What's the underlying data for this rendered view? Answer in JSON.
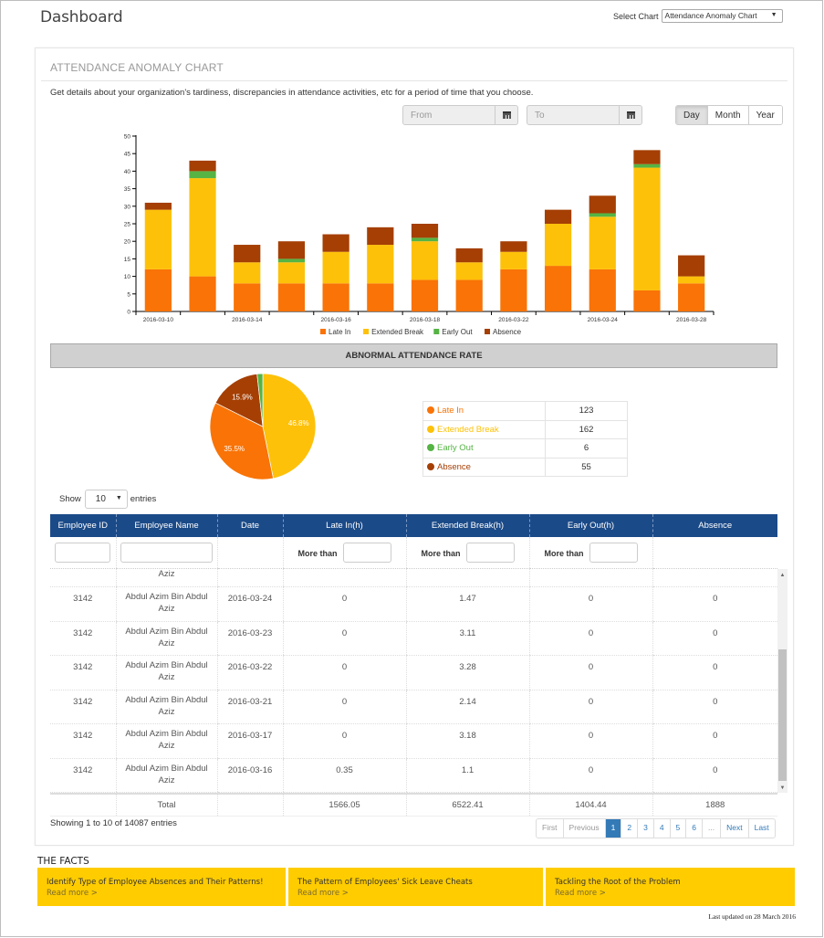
{
  "header": {
    "title": "Dashboard",
    "select_chart_label": "Select Chart",
    "select_chart_value": "Attendance Anomaly Chart"
  },
  "panel": {
    "title": "ATTENDANCE ANOMALY CHART",
    "description": "Get details about your organization's tardiness, discrepancies in attendance activities, etc for a period of time that you choose.",
    "from_placeholder": "From",
    "to_placeholder": "To",
    "period_buttons": [
      "Day",
      "Month",
      "Year"
    ],
    "active_period": "Day"
  },
  "colors": {
    "late_in": "#f97306",
    "extended_break": "#fec10a",
    "early_out": "#55b444",
    "absence": "#a53f04",
    "table_header": "#1b4a88",
    "facts_bg": "#ffcc00",
    "pager_active": "#337ab7"
  },
  "chart_data": [
    {
      "type": "bar",
      "stacked": true,
      "title": "",
      "xlabel": "",
      "ylabel": "",
      "ylim": [
        0,
        50
      ],
      "yticks": [
        0,
        5,
        10,
        15,
        20,
        25,
        30,
        35,
        40,
        45,
        50
      ],
      "categories": [
        "2016-03-10",
        "",
        "2016-03-14",
        "",
        "2016-03-16",
        "",
        "2016-03-18",
        "",
        "2016-03-22",
        "",
        "2016-03-24",
        "",
        "2016-03-28"
      ],
      "series": [
        {
          "name": "Late In",
          "values": [
            12,
            10,
            8,
            8,
            8,
            8,
            9,
            9,
            12,
            13,
            12,
            6,
            8
          ]
        },
        {
          "name": "Extended Break",
          "values": [
            17,
            28,
            6,
            6,
            9,
            11,
            11,
            5,
            5,
            12,
            15,
            35,
            2
          ]
        },
        {
          "name": "Early Out",
          "values": [
            0,
            2,
            0,
            1,
            0,
            0,
            1,
            0,
            0,
            0,
            1,
            1,
            0
          ]
        },
        {
          "name": "Absence",
          "values": [
            2,
            3,
            5,
            5,
            5,
            5,
            4,
            4,
            3,
            4,
            5,
            4,
            6
          ]
        }
      ],
      "legend": "bottom-center",
      "grid": false
    },
    {
      "type": "pie",
      "title": "ABNORMAL ATTENDANCE RATE",
      "labels": [
        "Extended Break",
        "Late In",
        "Absence",
        "Early Out"
      ],
      "values": [
        162,
        123,
        55,
        6
      ],
      "data_labels": [
        "46.8%",
        "35.5%",
        "15.9%",
        ""
      ]
    }
  ],
  "rate_section": {
    "title": "ABNORMAL ATTENDANCE RATE",
    "legend": [
      {
        "label": "Late In",
        "value": "123",
        "color": "#f97306"
      },
      {
        "label": "Extended Break",
        "value": "162",
        "color": "#fec10a"
      },
      {
        "label": "Early Out",
        "value": "6",
        "color": "#55b444"
      },
      {
        "label": "Absence",
        "value": "55",
        "color": "#a53f04"
      }
    ]
  },
  "table": {
    "show_label": "Show",
    "entries_label": "entries",
    "page_length": "10",
    "columns": [
      "Employee ID",
      "Employee Name",
      "Date",
      "Late In(h)",
      "Extended Break(h)",
      "Early Out(h)",
      "Absence"
    ],
    "more_than_label": "More than",
    "partial_row": {
      "name_tail": "Aziz"
    },
    "rows": [
      {
        "id": "3142",
        "name": "Abdul Azim Bin Abdul Aziz",
        "date": "2016-03-24",
        "late_in": "0",
        "extended_break": "1.47",
        "early_out": "0",
        "absence": "0"
      },
      {
        "id": "3142",
        "name": "Abdul Azim Bin Abdul Aziz",
        "date": "2016-03-23",
        "late_in": "0",
        "extended_break": "3.11",
        "early_out": "0",
        "absence": "0"
      },
      {
        "id": "3142",
        "name": "Abdul Azim Bin Abdul Aziz",
        "date": "2016-03-22",
        "late_in": "0",
        "extended_break": "3.28",
        "early_out": "0",
        "absence": "0"
      },
      {
        "id": "3142",
        "name": "Abdul Azim Bin Abdul Aziz",
        "date": "2016-03-21",
        "late_in": "0",
        "extended_break": "2.14",
        "early_out": "0",
        "absence": "0"
      },
      {
        "id": "3142",
        "name": "Abdul Azim Bin Abdul Aziz",
        "date": "2016-03-17",
        "late_in": "0",
        "extended_break": "3.18",
        "early_out": "0",
        "absence": "0"
      },
      {
        "id": "3142",
        "name": "Abdul Azim Bin Abdul Aziz",
        "date": "2016-03-16",
        "late_in": "0.35",
        "extended_break": "1.1",
        "early_out": "0",
        "absence": "0"
      }
    ],
    "totals": {
      "label": "Total",
      "late_in": "1566.05",
      "extended_break": "6522.41",
      "early_out": "1404.44",
      "absence": "1888"
    },
    "info": "Showing 1 to 10 of 14087 entries",
    "pagination": [
      "First",
      "Previous",
      "1",
      "2",
      "3",
      "4",
      "5",
      "6",
      "...",
      "Next",
      "Last"
    ],
    "active_page": "1"
  },
  "facts": {
    "title": "THE FACTS",
    "items": [
      {
        "title": "Identify Type of Employee Absences and Their Patterns!",
        "link": "Read more >"
      },
      {
        "title": "The Pattern of Employees' Sick Leave Cheats",
        "link": "Read more >"
      },
      {
        "title": "Tackling the Root of the Problem",
        "link": "Read more >"
      }
    ],
    "last_updated": "Last updated on 28 March 2016"
  }
}
